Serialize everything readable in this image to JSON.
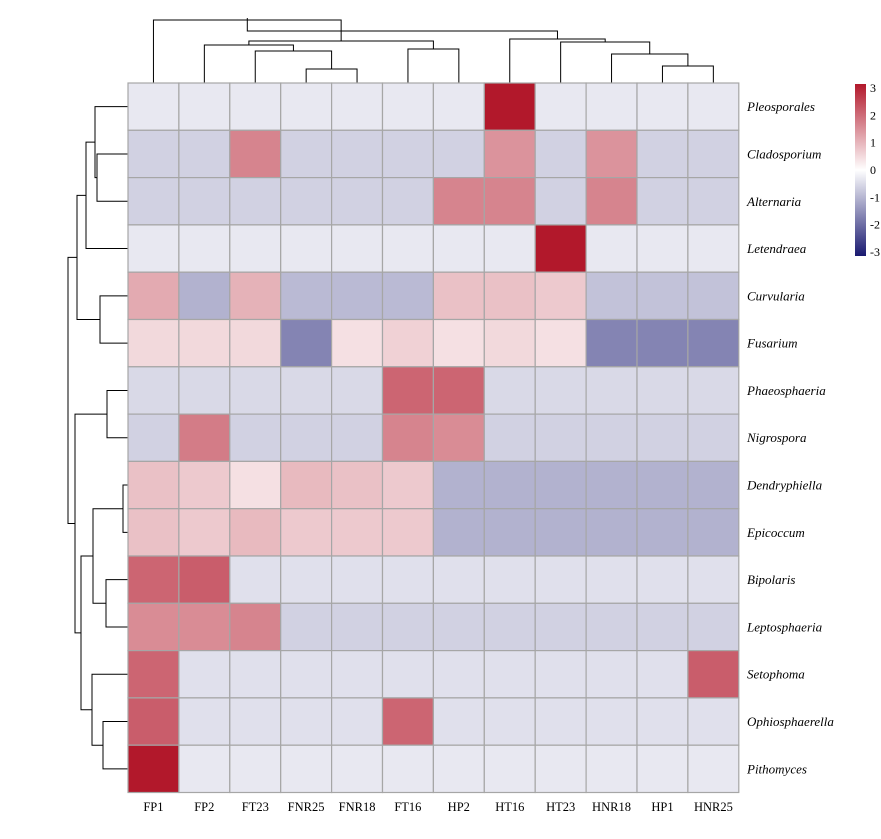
{
  "chart_data": {
    "type": "heatmap",
    "columns": [
      "FP1",
      "FP2",
      "FT23",
      "FNR25",
      "FNR18",
      "FT16",
      "HP2",
      "HT16",
      "HT23",
      "HNR18",
      "HP1",
      "HNR25"
    ],
    "rows": [
      "Pleosporales",
      "Cladosporium",
      "Alternaria",
      "Letendraea",
      "Curvularia",
      "Fusarium",
      "Phaeosphaeria",
      "Nigrospora",
      "Dendryphiella",
      "Epicoccum",
      "Bipolaris",
      "Leptosphaeria",
      "Setophoma",
      "Ophiosphaerella",
      "Pithomyces"
    ],
    "values": [
      [
        -0.3,
        -0.3,
        -0.3,
        -0.3,
        -0.3,
        -0.3,
        -0.3,
        3.3,
        -0.3,
        -0.3,
        -0.3,
        -0.3
      ],
      [
        -0.6,
        -0.6,
        1.6,
        -0.6,
        -0.6,
        -0.6,
        -0.6,
        1.4,
        -0.6,
        1.4,
        -0.6,
        -0.6
      ],
      [
        -0.6,
        -0.6,
        -0.6,
        -0.6,
        -0.6,
        -0.6,
        1.6,
        1.6,
        -0.6,
        1.6,
        -0.6,
        -0.6
      ],
      [
        -0.3,
        -0.3,
        -0.3,
        -0.3,
        -0.3,
        -0.3,
        -0.3,
        -0.3,
        3.3,
        -0.3,
        -0.3,
        -0.3
      ],
      [
        1.1,
        -1.0,
        1.0,
        -0.9,
        -0.9,
        -0.9,
        0.8,
        0.8,
        0.7,
        -0.8,
        -0.8,
        -0.8
      ],
      [
        0.5,
        0.5,
        0.5,
        -1.6,
        0.4,
        0.6,
        0.4,
        0.5,
        0.4,
        -1.6,
        -1.6,
        -1.6
      ],
      [
        -0.5,
        -0.5,
        -0.5,
        -0.5,
        -0.5,
        2.0,
        2.0,
        -0.5,
        -0.5,
        -0.5,
        -0.5,
        -0.5
      ],
      [
        -0.6,
        1.7,
        -0.6,
        -0.6,
        -0.6,
        1.6,
        1.5,
        -0.6,
        -0.6,
        -0.6,
        -0.6,
        -0.6
      ],
      [
        0.8,
        0.7,
        0.4,
        0.9,
        0.8,
        0.7,
        -1.0,
        -1.0,
        -1.0,
        -1.0,
        -1.0,
        -1.0
      ],
      [
        0.8,
        0.7,
        0.9,
        0.7,
        0.7,
        0.7,
        -1.0,
        -1.0,
        -1.0,
        -1.0,
        -1.0,
        -1.0
      ],
      [
        2.0,
        2.1,
        -0.4,
        -0.4,
        -0.4,
        -0.4,
        -0.4,
        -0.4,
        -0.4,
        -0.4,
        -0.4,
        -0.4
      ],
      [
        1.5,
        1.5,
        1.6,
        -0.6,
        -0.6,
        -0.6,
        -0.6,
        -0.6,
        -0.6,
        -0.6,
        -0.6,
        -0.6
      ],
      [
        2.0,
        -0.4,
        -0.4,
        -0.4,
        -0.4,
        -0.4,
        -0.4,
        -0.4,
        -0.4,
        -0.4,
        -0.4,
        2.1
      ],
      [
        2.1,
        -0.4,
        -0.4,
        -0.4,
        -0.4,
        2.0,
        -0.4,
        -0.4,
        -0.4,
        -0.4,
        -0.4,
        -0.4
      ],
      [
        3.3,
        -0.3,
        -0.3,
        -0.3,
        -0.3,
        -0.3,
        -0.3,
        -0.3,
        -0.3,
        -0.3,
        -0.3,
        -0.3
      ]
    ],
    "color_scale": {
      "min": -3,
      "mid": 0,
      "max": 3,
      "colors": [
        "#191970",
        "#ffffff",
        "#b2182b"
      ],
      "ticks": [
        "3",
        "2",
        "1",
        "0",
        "-1",
        "-2",
        "-3"
      ]
    },
    "cell_border_color": "#a6a6a6",
    "row_dendrogram": "left",
    "column_dendrogram": "top",
    "legend_position": "top-right"
  }
}
